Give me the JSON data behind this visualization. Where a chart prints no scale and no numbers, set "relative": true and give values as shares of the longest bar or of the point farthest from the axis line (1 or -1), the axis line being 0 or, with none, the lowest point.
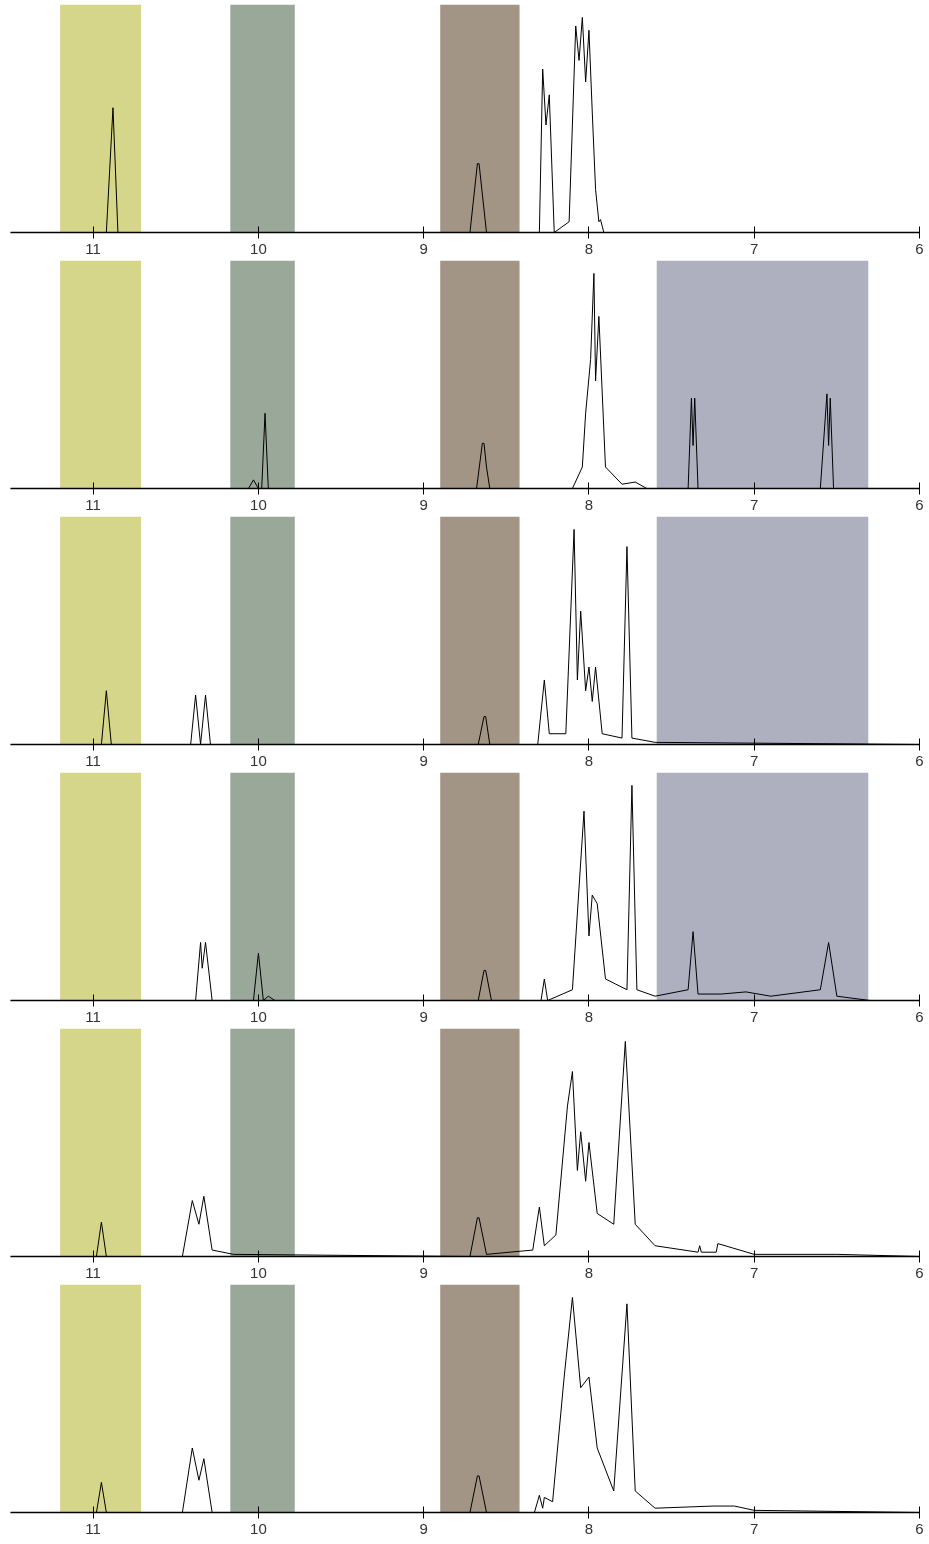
{
  "chart_data": [
    {
      "type": "line",
      "relative": true,
      "xlim": [
        11.5,
        6
      ],
      "xticks": [
        11,
        10,
        9,
        8,
        7,
        6
      ],
      "grid": false,
      "bands": [
        {
          "axis": "x",
          "from": 11.2,
          "to": 10.71,
          "color": "#d6d68a"
        },
        {
          "axis": "x",
          "from": 10.17,
          "to": 9.78,
          "color": "#9aa89a"
        },
        {
          "axis": "x",
          "from": 8.9,
          "to": 8.42,
          "color": "#a39585"
        }
      ],
      "series": [
        {
          "color": "#000000",
          "x": [
            11.5,
            10.92,
            10.88,
            10.85,
            8.72,
            8.675,
            8.665,
            8.62,
            8.3,
            8.28,
            8.26,
            8.24,
            8.21,
            8.12,
            8.08,
            8.06,
            8.04,
            8.02,
            8.0,
            7.98,
            7.96,
            7.94,
            7.93,
            7.91,
            7.65
          ],
          "values": [
            0,
            0,
            0.58,
            0,
            0,
            0.32,
            0.32,
            0,
            0,
            0.76,
            0.5,
            0.64,
            0,
            0.05,
            0.96,
            0.8,
            1.0,
            0.7,
            0.94,
            0.56,
            0.2,
            0.05,
            0.06,
            0,
            0
          ]
        }
      ]
    },
    {
      "type": "line",
      "relative": true,
      "xlim": [
        11.5,
        6
      ],
      "xticks": [
        11,
        10,
        9,
        8,
        7,
        6
      ],
      "grid": false,
      "bands": [
        {
          "axis": "x",
          "from": 11.2,
          "to": 10.71,
          "color": "#d6d68a"
        },
        {
          "axis": "x",
          "from": 10.17,
          "to": 9.78,
          "color": "#9aa89a"
        },
        {
          "axis": "x",
          "from": 8.9,
          "to": 8.42,
          "color": "#a39585"
        },
        {
          "axis": "x",
          "from": 7.59,
          "to": 6.31,
          "color": "#aeb0c0"
        }
      ],
      "series": [
        {
          "color": "#000000",
          "x": [
            11.5,
            10.06,
            10.03,
            10.0,
            9.98,
            9.96,
            9.94,
            8.68,
            8.645,
            8.635,
            8.62,
            8.6,
            8.1,
            8.04,
            8.02,
            7.99,
            7.97,
            7.96,
            7.94,
            7.9,
            7.8,
            7.72,
            7.65,
            7.4,
            7.38,
            7.37,
            7.36,
            7.34,
            6.6,
            6.56,
            6.55,
            6.54,
            6.52,
            6.3
          ],
          "values": [
            0,
            0,
            0.04,
            0,
            0,
            0.35,
            0,
            0,
            0.21,
            0.21,
            0.1,
            0,
            0,
            0.1,
            0.35,
            0.6,
            1.0,
            0.5,
            0.8,
            0.1,
            0.02,
            0.03,
            0,
            0,
            0.42,
            0.2,
            0.42,
            0,
            0,
            0.44,
            0.2,
            0.42,
            0,
            0
          ]
        }
      ]
    },
    {
      "type": "line",
      "relative": true,
      "xlim": [
        11.5,
        6
      ],
      "xticks": [
        11,
        10,
        9,
        8,
        7,
        6
      ],
      "grid": false,
      "bands": [
        {
          "axis": "x",
          "from": 11.2,
          "to": 10.71,
          "color": "#d6d68a"
        },
        {
          "axis": "x",
          "from": 10.17,
          "to": 9.78,
          "color": "#9aa89a"
        },
        {
          "axis": "x",
          "from": 8.9,
          "to": 8.42,
          "color": "#a39585"
        },
        {
          "axis": "x",
          "from": 7.59,
          "to": 6.31,
          "color": "#aeb0c0"
        }
      ],
      "series": [
        {
          "color": "#000000",
          "x": [
            11.5,
            10.95,
            10.92,
            10.89,
            10.41,
            10.38,
            10.35,
            10.32,
            10.29,
            8.67,
            8.635,
            8.625,
            8.6,
            8.31,
            8.27,
            8.24,
            8.14,
            8.09,
            8.07,
            8.05,
            8.02,
            8.0,
            7.98,
            7.96,
            7.92,
            7.8,
            7.77,
            7.74,
            7.6,
            6.0
          ],
          "values": [
            0,
            0,
            0.25,
            0,
            0,
            0.23,
            0,
            0.23,
            0,
            0,
            0.13,
            0.13,
            0,
            0,
            0.3,
            0.05,
            0.05,
            1.0,
            0.3,
            0.62,
            0.25,
            0.36,
            0.2,
            0.36,
            0.05,
            0.03,
            0.92,
            0.03,
            0.01,
            0
          ]
        }
      ]
    },
    {
      "type": "line",
      "relative": true,
      "xlim": [
        11.5,
        6
      ],
      "xticks": [
        11,
        10,
        9,
        8,
        7,
        6
      ],
      "grid": false,
      "bands": [
        {
          "axis": "x",
          "from": 11.2,
          "to": 10.71,
          "color": "#d6d68a"
        },
        {
          "axis": "x",
          "from": 10.17,
          "to": 9.78,
          "color": "#9aa89a"
        },
        {
          "axis": "x",
          "from": 8.9,
          "to": 8.42,
          "color": "#a39585"
        },
        {
          "axis": "x",
          "from": 7.59,
          "to": 6.31,
          "color": "#aeb0c0"
        }
      ],
      "series": [
        {
          "color": "#000000",
          "x": [
            11.5,
            10.38,
            10.35,
            10.34,
            10.32,
            10.28,
            10.03,
            10.0,
            9.97,
            9.94,
            9.9,
            8.67,
            8.635,
            8.625,
            8.59,
            8.29,
            8.27,
            8.25,
            8.1,
            8.03,
            8.0,
            7.98,
            7.95,
            7.9,
            7.77,
            7.74,
            7.71,
            7.6,
            7.4,
            7.37,
            7.34,
            7.2,
            7.05,
            6.9,
            6.6,
            6.55,
            6.5,
            6.3
          ],
          "values": [
            0,
            0,
            0.27,
            0.15,
            0.27,
            0,
            0,
            0.22,
            0,
            0.02,
            0,
            0,
            0.14,
            0.14,
            0,
            0,
            0.1,
            0,
            0.05,
            0.88,
            0.3,
            0.49,
            0.45,
            0.1,
            0.05,
            1.0,
            0.05,
            0.02,
            0.05,
            0.32,
            0.03,
            0.03,
            0.04,
            0.02,
            0.05,
            0.27,
            0.02,
            0
          ]
        }
      ]
    },
    {
      "type": "line",
      "relative": true,
      "xlim": [
        11.5,
        6
      ],
      "xticks": [
        11,
        10,
        9,
        8,
        7,
        6
      ],
      "grid": false,
      "bands": [
        {
          "axis": "x",
          "from": 11.2,
          "to": 10.71,
          "color": "#d6d68a"
        },
        {
          "axis": "x",
          "from": 10.17,
          "to": 9.78,
          "color": "#9aa89a"
        },
        {
          "axis": "x",
          "from": 8.9,
          "to": 8.42,
          "color": "#a39585"
        }
      ],
      "series": [
        {
          "color": "#000000",
          "x": [
            11.5,
            10.98,
            10.95,
            10.92,
            10.46,
            10.4,
            10.36,
            10.33,
            10.28,
            10.15,
            8.72,
            8.675,
            8.665,
            8.62,
            8.34,
            8.3,
            8.27,
            8.2,
            8.13,
            8.1,
            8.07,
            8.05,
            8.02,
            8.0,
            7.95,
            7.85,
            7.78,
            7.72,
            7.6,
            7.34,
            7.33,
            7.32,
            7.23,
            7.22,
            7.0,
            6.5,
            6.0
          ],
          "values": [
            0,
            0,
            0.16,
            0,
            0,
            0.26,
            0.15,
            0.28,
            0.03,
            0.01,
            0,
            0.18,
            0.18,
            0.01,
            0.03,
            0.23,
            0.05,
            0.1,
            0.7,
            0.86,
            0.4,
            0.58,
            0.35,
            0.53,
            0.2,
            0.15,
            1.0,
            0.15,
            0.05,
            0.02,
            0.05,
            0.02,
            0.02,
            0.06,
            0.01,
            0.01,
            0
          ]
        }
      ]
    },
    {
      "type": "line",
      "relative": true,
      "xlim": [
        11.5,
        6
      ],
      "xticks": [
        11,
        10,
        9,
        8,
        7,
        6
      ],
      "grid": false,
      "bands": [
        {
          "axis": "x",
          "from": 11.2,
          "to": 10.71,
          "color": "#d6d68a"
        },
        {
          "axis": "x",
          "from": 10.17,
          "to": 9.78,
          "color": "#9aa89a"
        },
        {
          "axis": "x",
          "from": 8.9,
          "to": 8.42,
          "color": "#a39585"
        }
      ],
      "series": [
        {
          "color": "#000000",
          "x": [
            11.5,
            10.98,
            10.95,
            10.92,
            10.46,
            10.4,
            10.36,
            10.33,
            10.28,
            8.72,
            8.675,
            8.665,
            8.62,
            8.33,
            8.3,
            8.28,
            8.27,
            8.22,
            8.15,
            8.1,
            8.05,
            8.0,
            7.95,
            7.85,
            7.77,
            7.72,
            7.6,
            7.25,
            7.12,
            7.0,
            6.0
          ],
          "values": [
            0,
            0,
            0.14,
            0,
            0,
            0.3,
            0.15,
            0.25,
            0,
            0,
            0.17,
            0.17,
            0,
            0,
            0.08,
            0.02,
            0.07,
            0.05,
            0.63,
            1.0,
            0.58,
            0.63,
            0.3,
            0.1,
            0.97,
            0.1,
            0.02,
            0.03,
            0.03,
            0.01,
            0
          ]
        }
      ]
    }
  ]
}
